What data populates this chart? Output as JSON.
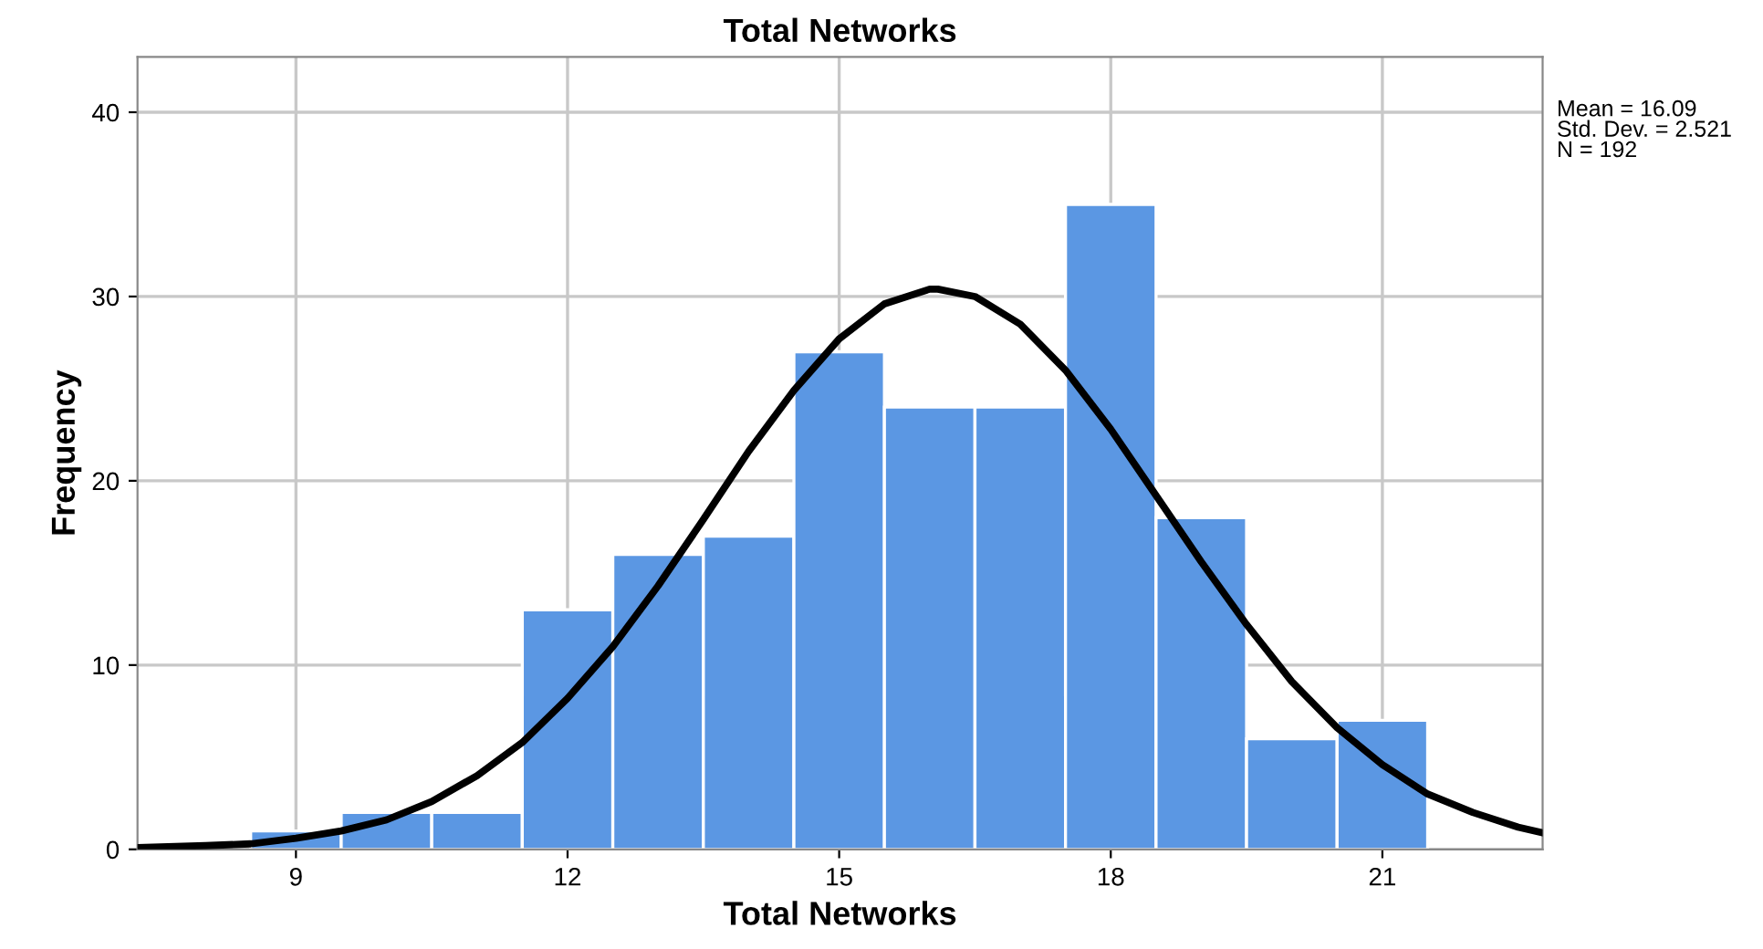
{
  "chart_data": {
    "type": "histogram",
    "title": "Total Networks",
    "xlabel": "Total Networks",
    "ylabel": "Frequency",
    "bins": [
      8.5,
      9.5,
      10.5,
      11.5,
      12.5,
      13.5,
      14.5,
      15.5,
      16.5,
      17.5,
      18.5,
      19.5,
      20.5,
      21.5
    ],
    "values": [
      1,
      2,
      2,
      13,
      16,
      17,
      27,
      24,
      24,
      35,
      18,
      6,
      7
    ],
    "color": "#5b97e3",
    "series": [
      {
        "type": "line",
        "color": "#000000",
        "x": [
          7.25,
          8,
          8.5,
          9,
          9.5,
          10,
          10.5,
          11,
          11.5,
          12,
          12.5,
          13,
          13.5,
          14,
          14.5,
          15,
          15.5,
          16,
          16.09,
          16.5,
          17,
          17.5,
          18,
          18.5,
          19,
          19.5,
          20,
          20.5,
          21,
          21.5,
          22,
          22.5,
          22.77
        ],
        "values": [
          0.1,
          0.2,
          0.3,
          0.6,
          1.0,
          1.6,
          2.6,
          4.0,
          5.8,
          8.2,
          11.0,
          14.3,
          17.9,
          21.6,
          24.9,
          27.7,
          29.6,
          30.4,
          30.4,
          30.0,
          28.5,
          26.0,
          22.8,
          19.2,
          15.6,
          12.2,
          9.1,
          6.6,
          4.6,
          3.0,
          2.0,
          1.2,
          0.9
        ]
      }
    ],
    "xlim": [
      7.25,
      22.77
    ],
    "ylim": [
      0,
      43
    ],
    "xticks": [
      9,
      12,
      15,
      18,
      21
    ],
    "yticks": [
      0,
      10,
      20,
      30,
      40
    ],
    "grid": true,
    "annotations": [
      "Mean = 16.09\nStd. Dev. = 2.521\nN = 192"
    ]
  }
}
